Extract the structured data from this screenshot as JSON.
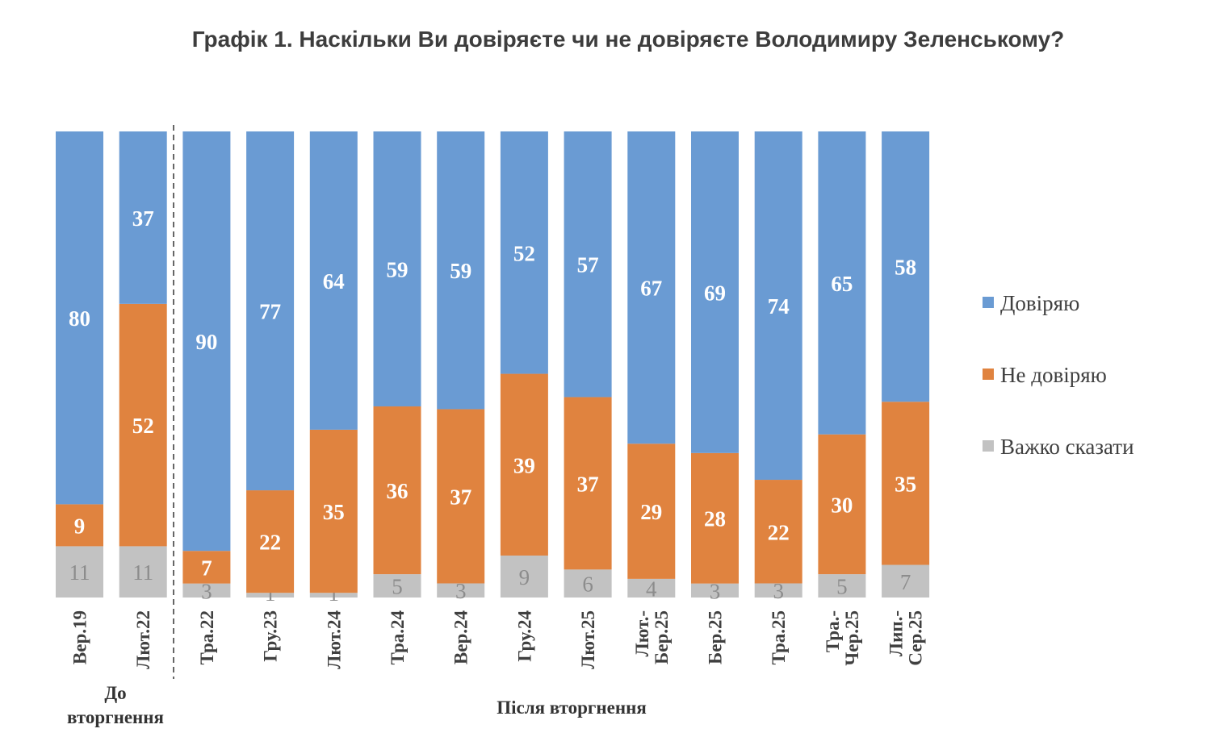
{
  "chart_data": {
    "type": "bar",
    "stacked": true,
    "orientation": "vertical",
    "title": "Графік 1. Наскільки Ви довіряєте чи не довіряєте Володимиру Зеленському?",
    "categories": [
      "Вер.19",
      "Лют.22",
      "Тра.22",
      "Гру.23",
      "Лют.24",
      "Тра.24",
      "Вер.24",
      "Гру.24",
      "Лют.25",
      "Лют.-\nБер.25",
      "Бер.25",
      "Тра.25",
      "Тра.-\nЧер.25",
      "Лип.-\nСер.25"
    ],
    "series": [
      {
        "name": "Довіряю",
        "color": "#6a9bd3",
        "values": [
          80,
          37,
          90,
          77,
          64,
          59,
          59,
          52,
          57,
          67,
          69,
          74,
          65,
          58
        ]
      },
      {
        "name": "Не довіряю",
        "color": "#e0833f",
        "values": [
          9,
          52,
          7,
          22,
          35,
          36,
          37,
          39,
          37,
          29,
          28,
          22,
          30,
          35
        ]
      },
      {
        "name": "Важко сказати",
        "color": "#c2c2c2",
        "values": [
          11,
          11,
          3,
          1,
          1,
          5,
          3,
          9,
          6,
          4,
          3,
          3,
          5,
          7
        ]
      }
    ],
    "groups": [
      {
        "label": "До вторгнення",
        "categories": 2
      },
      {
        "label": "Після вторгнення",
        "categories": 12
      }
    ],
    "group_divider": "dashed",
    "legend_position": "right",
    "grid": false,
    "ylim": [
      0,
      100
    ]
  }
}
